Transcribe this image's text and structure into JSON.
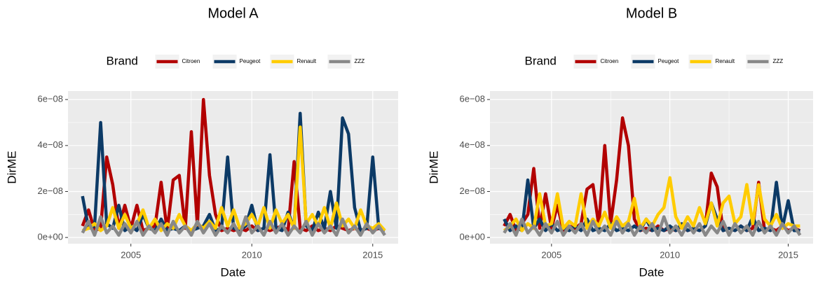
{
  "chart_data": [
    {
      "type": "line",
      "title": "Model A",
      "x_label": "Date",
      "y_label": "DirME",
      "legend_title": "Brand",
      "legend_position": "top",
      "grid": true,
      "x": [
        2003,
        2003.25,
        2003.5,
        2003.75,
        2004,
        2004.25,
        2004.5,
        2004.75,
        2005,
        2005.25,
        2005.5,
        2005.75,
        2006,
        2006.25,
        2006.5,
        2006.75,
        2007,
        2007.25,
        2007.5,
        2007.75,
        2008,
        2008.25,
        2008.5,
        2008.75,
        2009,
        2009.25,
        2009.5,
        2009.75,
        2010,
        2010.25,
        2010.5,
        2010.75,
        2011,
        2011.25,
        2011.5,
        2011.75,
        2012,
        2012.25,
        2012.5,
        2012.75,
        2013,
        2013.25,
        2013.5,
        2013.75,
        2014,
        2014.25,
        2014.5,
        2014.75,
        2015,
        2015.25,
        2015.5
      ],
      "xlim": [
        2002.4,
        2016.05
      ],
      "xticks": [
        2005,
        2010,
        2015
      ],
      "ylim": [
        -2.7e-09,
        6.37e-08
      ],
      "yticks": [
        {
          "value": 0,
          "label": "0e+00"
        },
        {
          "value": 2e-08,
          "label": "2e−08"
        },
        {
          "value": 4e-08,
          "label": "4e−08"
        },
        {
          "value": 6e-08,
          "label": "6e−08"
        }
      ],
      "series": [
        {
          "name": "Citroen",
          "color": "#b20000",
          "values": [
            5e-09,
            1.2e-08,
            3e-09,
            4e-09,
            3.5e-08,
            2.3e-08,
            4e-09,
            1.4e-08,
            4e-09,
            1.4e-08,
            3e-09,
            4e-09,
            5e-09,
            2.4e-08,
            3e-09,
            2.5e-08,
            2.7e-08,
            4e-09,
            4.6e-08,
            5e-09,
            6e-08,
            2.7e-08,
            1e-08,
            3e-09,
            4e-09,
            3e-09,
            4e-09,
            3e-09,
            5e-09,
            3e-09,
            4e-09,
            3e-09,
            4e-09,
            5e-09,
            3e-09,
            3.3e-08,
            4e-09,
            3e-09,
            5e-09,
            3e-09,
            4e-09,
            3e-09,
            5e-09,
            4e-09,
            3e-09,
            4e-09,
            3e-09,
            4e-09,
            3e-09,
            4e-09,
            3e-09
          ]
        },
        {
          "name": "Peugeot",
          "color": "#0c3a66",
          "values": [
            1.8e-08,
            4e-09,
            5e-09,
            5e-08,
            6e-09,
            4e-09,
            1.4e-08,
            3e-09,
            5e-09,
            3e-09,
            1e-08,
            4e-09,
            3e-09,
            8e-09,
            3e-09,
            4e-09,
            3e-09,
            5e-09,
            3e-09,
            4e-09,
            5e-09,
            1e-08,
            3e-09,
            4e-09,
            3.5e-08,
            4e-09,
            3e-09,
            5e-09,
            1.4e-08,
            3e-09,
            4e-09,
            3.6e-08,
            4e-09,
            3e-09,
            1.1e-08,
            4e-09,
            5.4e-08,
            5e-09,
            3e-09,
            1.1e-08,
            4e-09,
            2e-08,
            4e-09,
            5.2e-08,
            4.5e-08,
            1.3e-08,
            3e-09,
            4e-09,
            3.5e-08,
            4e-09,
            3e-09
          ]
        },
        {
          "name": "Renault",
          "color": "#ffcc00",
          "values": [
            3e-09,
            4e-09,
            6e-09,
            3e-09,
            5e-09,
            1.3e-08,
            4e-09,
            1e-08,
            4e-09,
            6e-09,
            1.2e-08,
            4e-09,
            8e-09,
            3e-09,
            6e-09,
            4e-09,
            1e-08,
            5e-09,
            3e-09,
            6e-09,
            4e-09,
            7e-09,
            4e-09,
            1.3e-08,
            5e-09,
            1.2e-08,
            4e-09,
            6e-09,
            1e-08,
            5e-09,
            1.3e-08,
            4e-09,
            1.2e-08,
            6e-09,
            1e-08,
            4e-09,
            4.8e-08,
            6e-09,
            1e-08,
            5e-09,
            1.3e-08,
            4e-09,
            1.5e-08,
            5e-09,
            8e-09,
            4e-09,
            1.2e-08,
            5e-09,
            4e-09,
            6e-09,
            3e-09
          ]
        },
        {
          "name": "ZZZ",
          "color": "#888888",
          "values": [
            2e-09,
            7e-09,
            1e-09,
            9e-09,
            2e-09,
            5e-09,
            1e-09,
            6e-09,
            2e-09,
            7e-09,
            1e-09,
            5e-09,
            2e-09,
            6e-09,
            1e-09,
            7e-09,
            2e-09,
            5e-09,
            1e-09,
            7e-09,
            2e-09,
            6e-09,
            1e-09,
            5e-09,
            2e-09,
            6e-09,
            1e-09,
            9e-09,
            2e-09,
            5e-09,
            1e-09,
            7e-09,
            2e-09,
            6e-09,
            1e-09,
            5e-09,
            2e-09,
            7e-09,
            1e-09,
            6e-09,
            2e-09,
            5e-09,
            1e-09,
            8e-09,
            2e-09,
            5e-09,
            1e-09,
            6e-09,
            2e-09,
            5e-09,
            1e-09
          ]
        }
      ]
    },
    {
      "type": "line",
      "title": "Model B",
      "x_label": "Date",
      "y_label": "DirME",
      "legend_title": "Brand",
      "legend_position": "top",
      "grid": true,
      "x": [
        2003,
        2003.25,
        2003.5,
        2003.75,
        2004,
        2004.25,
        2004.5,
        2004.75,
        2005,
        2005.25,
        2005.5,
        2005.75,
        2006,
        2006.25,
        2006.5,
        2006.75,
        2007,
        2007.25,
        2007.5,
        2007.75,
        2008,
        2008.25,
        2008.5,
        2008.75,
        2009,
        2009.25,
        2009.5,
        2009.75,
        2010,
        2010.25,
        2010.5,
        2010.75,
        2011,
        2011.25,
        2011.5,
        2011.75,
        2012,
        2012.25,
        2012.5,
        2012.75,
        2013,
        2013.25,
        2013.5,
        2013.75,
        2014,
        2014.25,
        2014.5,
        2014.75,
        2015,
        2015.25,
        2015.5
      ],
      "xlim": [
        2002.4,
        2016.05
      ],
      "xticks": [
        2005,
        2010,
        2015
      ],
      "ylim": [
        -2.7e-09,
        6.37e-08
      ],
      "yticks": [
        {
          "value": 0,
          "label": "0e+00"
        },
        {
          "value": 2e-08,
          "label": "2e−08"
        },
        {
          "value": 4e-08,
          "label": "4e−08"
        },
        {
          "value": 6e-08,
          "label": "6e−08"
        }
      ],
      "series": [
        {
          "name": "Citroen",
          "color": "#b20000",
          "values": [
            5e-09,
            1e-08,
            3e-09,
            6e-09,
            1e-08,
            3e-08,
            4e-09,
            1.9e-08,
            4e-09,
            1.4e-08,
            3e-09,
            5e-09,
            4e-09,
            6e-09,
            2.1e-08,
            2.3e-08,
            5e-09,
            4e-08,
            6e-09,
            2.5e-08,
            5.2e-08,
            4e-08,
            8e-09,
            3e-09,
            4e-09,
            3e-09,
            5e-09,
            3e-09,
            4e-09,
            3e-09,
            5e-09,
            3e-09,
            4e-09,
            3e-09,
            5e-09,
            2.8e-08,
            2.2e-08,
            3e-09,
            4e-09,
            3e-09,
            5e-09,
            3e-09,
            4e-09,
            2.4e-08,
            3e-09,
            4e-09,
            3e-09,
            5e-09,
            3e-09,
            4e-09,
            3e-09
          ]
        },
        {
          "name": "Peugeot",
          "color": "#0c3a66",
          "values": [
            8e-09,
            3e-09,
            5e-09,
            3e-09,
            2.5e-08,
            4e-09,
            8e-09,
            3e-09,
            6e-09,
            3e-09,
            4e-09,
            3e-09,
            5e-09,
            3e-09,
            8e-09,
            3e-09,
            4e-09,
            3e-09,
            6e-09,
            3e-09,
            4e-09,
            3e-09,
            5e-09,
            3e-09,
            8e-09,
            3e-09,
            4e-09,
            3e-09,
            5e-09,
            3e-09,
            6e-09,
            3e-09,
            4e-09,
            3e-09,
            5e-09,
            1.5e-08,
            8e-09,
            3e-09,
            4e-09,
            3e-09,
            5e-09,
            3e-09,
            9e-09,
            3e-09,
            4e-09,
            3e-09,
            2.4e-08,
            4e-09,
            1.6e-08,
            3e-09,
            3e-09
          ]
        },
        {
          "name": "Renault",
          "color": "#ffcc00",
          "values": [
            3e-09,
            5e-09,
            8e-09,
            3e-09,
            6e-09,
            4e-09,
            1.9e-08,
            5e-09,
            6e-09,
            1.9e-08,
            4e-09,
            7e-09,
            5e-09,
            1.9e-08,
            4e-09,
            8e-09,
            5e-09,
            1.1e-08,
            4e-09,
            9e-09,
            5e-09,
            7e-09,
            1.7e-08,
            4e-09,
            8e-09,
            5e-09,
            1e-08,
            1.3e-08,
            2.6e-08,
            9e-09,
            4e-09,
            9e-09,
            5e-09,
            1.3e-08,
            6e-09,
            1.5e-08,
            5e-09,
            1.5e-08,
            1.8e-08,
            6e-09,
            9e-09,
            2.3e-08,
            6e-09,
            2.3e-08,
            8e-09,
            5e-09,
            1e-08,
            4e-09,
            6e-09,
            5e-09,
            5e-09
          ]
        },
        {
          "name": "ZZZ",
          "color": "#888888",
          "values": [
            2e-09,
            6e-09,
            1e-09,
            8e-09,
            2e-09,
            5e-09,
            1e-09,
            6e-09,
            2e-09,
            7e-09,
            1e-09,
            5e-09,
            2e-09,
            6e-09,
            1e-09,
            7e-09,
            2e-09,
            5e-09,
            1e-09,
            7e-09,
            2e-09,
            6e-09,
            1e-09,
            5e-09,
            2e-09,
            6e-09,
            1e-09,
            9e-09,
            2e-09,
            5e-09,
            1e-09,
            6e-09,
            2e-09,
            6e-09,
            1e-09,
            5e-09,
            2e-09,
            7e-09,
            1e-09,
            6e-09,
            2e-09,
            5e-09,
            1e-09,
            7e-09,
            2e-09,
            5e-09,
            1e-09,
            6e-09,
            2e-09,
            5e-09,
            1e-09
          ]
        }
      ]
    }
  ]
}
